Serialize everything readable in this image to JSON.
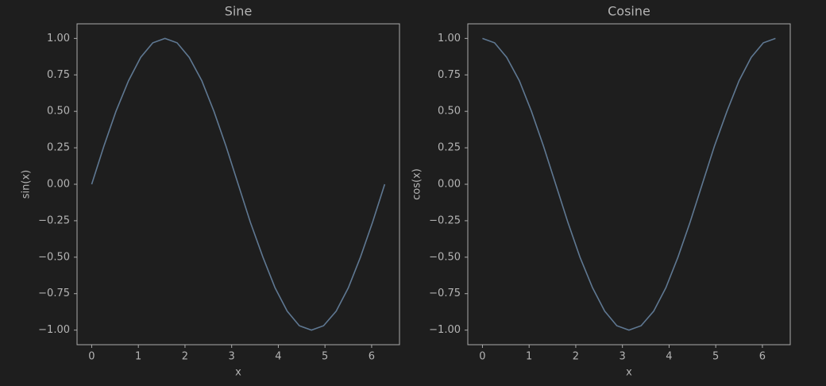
{
  "chart_data": [
    {
      "type": "line",
      "title": "Sine",
      "xlabel": "x",
      "ylabel": "sin(x)",
      "color": "#5f7892",
      "x": [
        0,
        0.26,
        0.52,
        0.79,
        1.05,
        1.31,
        1.57,
        1.83,
        2.09,
        2.36,
        2.62,
        2.88,
        3.14,
        3.4,
        3.67,
        3.93,
        4.19,
        4.45,
        4.71,
        4.97,
        5.24,
        5.5,
        5.76,
        6.02,
        6.28
      ],
      "values": [
        0,
        0.26,
        0.5,
        0.71,
        0.87,
        0.97,
        1,
        0.97,
        0.87,
        0.71,
        0.5,
        0.26,
        0,
        -0.26,
        -0.5,
        -0.71,
        -0.87,
        -0.97,
        -1,
        -0.97,
        -0.87,
        -0.71,
        -0.5,
        -0.26,
        0
      ],
      "xlim": [
        -0.314,
        6.597
      ],
      "ylim": [
        -1.1,
        1.1
      ],
      "xticks": [
        0,
        1,
        2,
        3,
        4,
        5,
        6
      ],
      "yticks": [
        {
          "value": -1,
          "label": "−1.00"
        },
        {
          "value": -0.75,
          "label": "−0.75"
        },
        {
          "value": -0.5,
          "label": "−0.50"
        },
        {
          "value": -0.25,
          "label": "−0.25"
        },
        {
          "value": 0,
          "label": "0.00"
        },
        {
          "value": 0.25,
          "label": "0.25"
        },
        {
          "value": 0.5,
          "label": "0.50"
        },
        {
          "value": 0.75,
          "label": "0.75"
        },
        {
          "value": 1,
          "label": "1.00"
        }
      ]
    },
    {
      "type": "line",
      "title": "Cosine",
      "xlabel": "x",
      "ylabel": "cos(x)",
      "color": "#5f7892",
      "x": [
        0,
        0.26,
        0.52,
        0.79,
        1.05,
        1.31,
        1.57,
        1.83,
        2.09,
        2.36,
        2.62,
        2.88,
        3.14,
        3.4,
        3.67,
        3.93,
        4.19,
        4.45,
        4.71,
        4.97,
        5.24,
        5.5,
        5.76,
        6.02,
        6.28
      ],
      "values": [
        1,
        0.97,
        0.87,
        0.71,
        0.5,
        0.26,
        0,
        -0.26,
        -0.5,
        -0.71,
        -0.87,
        -0.97,
        -1,
        -0.97,
        -0.87,
        -0.71,
        -0.5,
        -0.26,
        0,
        0.26,
        0.5,
        0.71,
        0.87,
        0.97,
        1
      ],
      "xlim": [
        -0.314,
        6.597
      ],
      "ylim": [
        -1.1,
        1.1
      ],
      "xticks": [
        0,
        1,
        2,
        3,
        4,
        5,
        6
      ],
      "yticks": [
        {
          "value": -1,
          "label": "−1.00"
        },
        {
          "value": -0.75,
          "label": "−0.75"
        },
        {
          "value": -0.5,
          "label": "−0.50"
        },
        {
          "value": -0.25,
          "label": "−0.25"
        },
        {
          "value": 0,
          "label": "0.00"
        },
        {
          "value": 0.25,
          "label": "0.25"
        },
        {
          "value": 0.5,
          "label": "0.50"
        },
        {
          "value": 0.75,
          "label": "0.75"
        },
        {
          "value": 1,
          "label": "1.00"
        }
      ]
    }
  ]
}
